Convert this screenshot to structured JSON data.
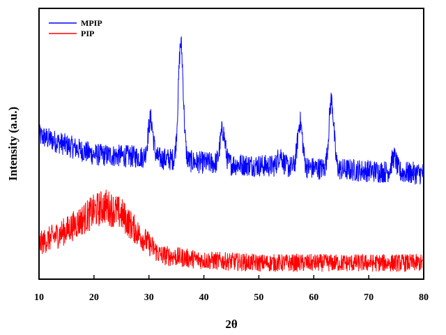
{
  "chart_data": {
    "type": "line",
    "xlabel": "2θ",
    "ylabel": "Intensity (a.u.)",
    "xlim": [
      10,
      80
    ],
    "ylim": [
      0,
      100
    ],
    "xticks": [
      "10",
      "20",
      "30",
      "40",
      "50",
      "60",
      "70",
      "80"
    ],
    "yticks_shown": false,
    "grid": false,
    "legend_position": "top-left",
    "series": [
      {
        "name": "MPIP",
        "color": "#0000ff",
        "baseline_trend": [
          [
            10,
            53
          ],
          [
            20,
            46
          ],
          [
            30,
            45
          ],
          [
            40,
            43
          ],
          [
            50,
            42
          ],
          [
            60,
            41
          ],
          [
            70,
            40
          ],
          [
            80,
            39
          ]
        ],
        "peaks": [
          {
            "x": 30.3,
            "y": 59
          },
          {
            "x": 35.8,
            "y": 87
          },
          {
            "x": 43.4,
            "y": 55
          },
          {
            "x": 53.9,
            "y": 46
          },
          {
            "x": 57.5,
            "y": 58
          },
          {
            "x": 63.2,
            "y": 66
          },
          {
            "x": 74.6,
            "y": 45
          }
        ]
      },
      {
        "name": "PIP",
        "color": "#ff0000",
        "baseline_trend": [
          [
            10,
            13
          ],
          [
            15,
            18
          ],
          [
            20,
            25
          ],
          [
            22,
            27
          ],
          [
            25,
            24
          ],
          [
            28,
            17
          ],
          [
            32,
            9
          ],
          [
            40,
            7
          ],
          [
            50,
            6
          ],
          [
            60,
            6
          ],
          [
            70,
            6
          ],
          [
            80,
            6
          ]
        ],
        "peaks": []
      }
    ]
  }
}
